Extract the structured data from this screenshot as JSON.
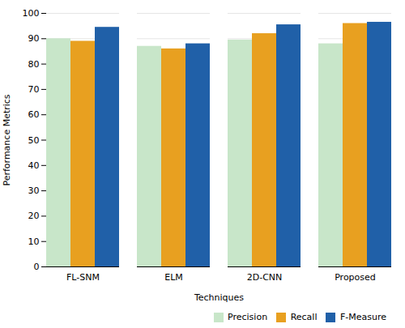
{
  "chart_data": {
    "type": "bar",
    "categories": [
      "FL-SNM",
      "ELM",
      "2D-CNN",
      "Proposed"
    ],
    "series": [
      {
        "name": "Precision",
        "color": "#c8e6c9",
        "values": [
          90,
          87,
          89.5,
          88
        ]
      },
      {
        "name": "Recall",
        "color": "#e8a020",
        "values": [
          89,
          86,
          92,
          96
        ]
      },
      {
        "name": "F-Measure",
        "color": "#2060a8",
        "values": [
          94.5,
          88,
          95.5,
          96.5
        ]
      }
    ],
    "xlabel": "Techniques",
    "ylabel": "Performance Metrics",
    "ylim": [
      0,
      100
    ],
    "yticks": [
      0,
      10,
      20,
      30,
      40,
      50,
      60,
      70,
      80,
      90,
      100
    ],
    "grid": true,
    "legend": "lower right"
  }
}
